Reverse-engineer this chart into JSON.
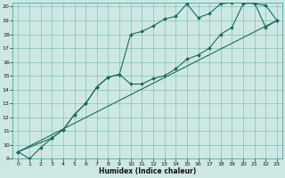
{
  "xlabel": "Humidex (Indice chaleur)",
  "bg_color": "#cde8e4",
  "grid_color": "#4aaa99",
  "line_color": "#1a6b5a",
  "xlim": [
    -0.5,
    23.5
  ],
  "ylim": [
    9,
    20.3
  ],
  "xticks": [
    0,
    1,
    2,
    3,
    4,
    5,
    6,
    7,
    8,
    9,
    10,
    11,
    12,
    13,
    14,
    15,
    16,
    17,
    18,
    19,
    20,
    21,
    22,
    23
  ],
  "yticks": [
    9,
    10,
    11,
    12,
    13,
    14,
    15,
    16,
    17,
    18,
    19,
    20
  ],
  "line1_x": [
    0,
    1,
    2,
    3,
    4,
    5,
    6,
    7,
    8,
    9,
    10,
    11,
    12,
    13,
    14,
    15,
    16,
    17,
    18,
    19,
    20,
    21,
    22,
    23
  ],
  "line1_y": [
    9.5,
    9.0,
    9.8,
    10.5,
    11.1,
    12.2,
    13.0,
    14.2,
    14.9,
    15.1,
    18.0,
    18.2,
    18.6,
    19.1,
    19.3,
    20.2,
    19.2,
    19.5,
    20.2,
    20.3,
    20.3,
    20.2,
    20.1,
    19.0
  ],
  "line2_x": [
    0,
    3,
    4,
    5,
    6,
    7,
    8,
    9,
    10,
    11,
    12,
    13,
    14,
    15,
    16,
    17,
    18,
    19,
    20,
    21,
    22,
    23
  ],
  "line2_y": [
    9.5,
    10.5,
    11.1,
    12.2,
    13.0,
    14.2,
    14.9,
    15.1,
    14.4,
    14.4,
    14.8,
    15.0,
    15.5,
    16.2,
    16.5,
    17.0,
    18.0,
    18.5,
    20.2,
    20.3,
    18.5,
    19.0
  ],
  "line3_x": [
    0,
    23
  ],
  "line3_y": [
    9.5,
    19.0
  ]
}
